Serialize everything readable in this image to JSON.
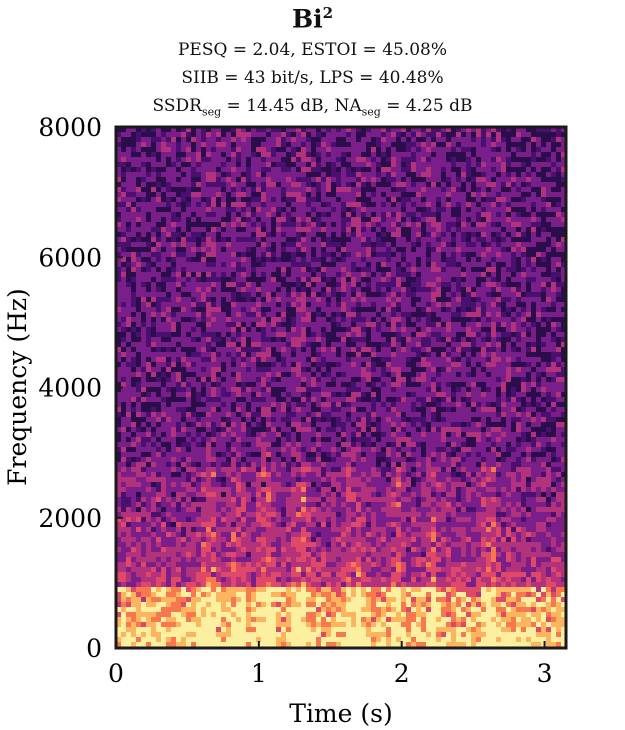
{
  "chart_data": {
    "type": "heatmap",
    "title_base": "Bi",
    "title_sup": "2",
    "metrics": {
      "line1": "PESQ = 2.04, ESTOI = 45.08%",
      "line2": "SIIB = 43 bit/s, LPS = 40.48%",
      "line3_a": "SSDR",
      "line3_a_sub": "seg",
      "line3_b": " = 14.45 dB, NA",
      "line3_b_sub": "seg",
      "line3_c": " = 4.25 dB"
    },
    "xlabel": "Time (s)",
    "ylabel": "Frequency (Hz)",
    "xlim": [
      0,
      3.15
    ],
    "ylim": [
      0,
      8000
    ],
    "x_ticks": [
      0,
      1,
      2,
      3
    ],
    "y_ticks": [
      0,
      2000,
      4000,
      6000,
      8000
    ],
    "colormap": "magma",
    "colormap_stops": [
      "#2a0d4a",
      "#4a1070",
      "#7a1f8a",
      "#b2327b",
      "#e0486a",
      "#f7784f",
      "#fcb45f",
      "#fcef9f"
    ],
    "frame_color": "#1a1a1a"
  }
}
